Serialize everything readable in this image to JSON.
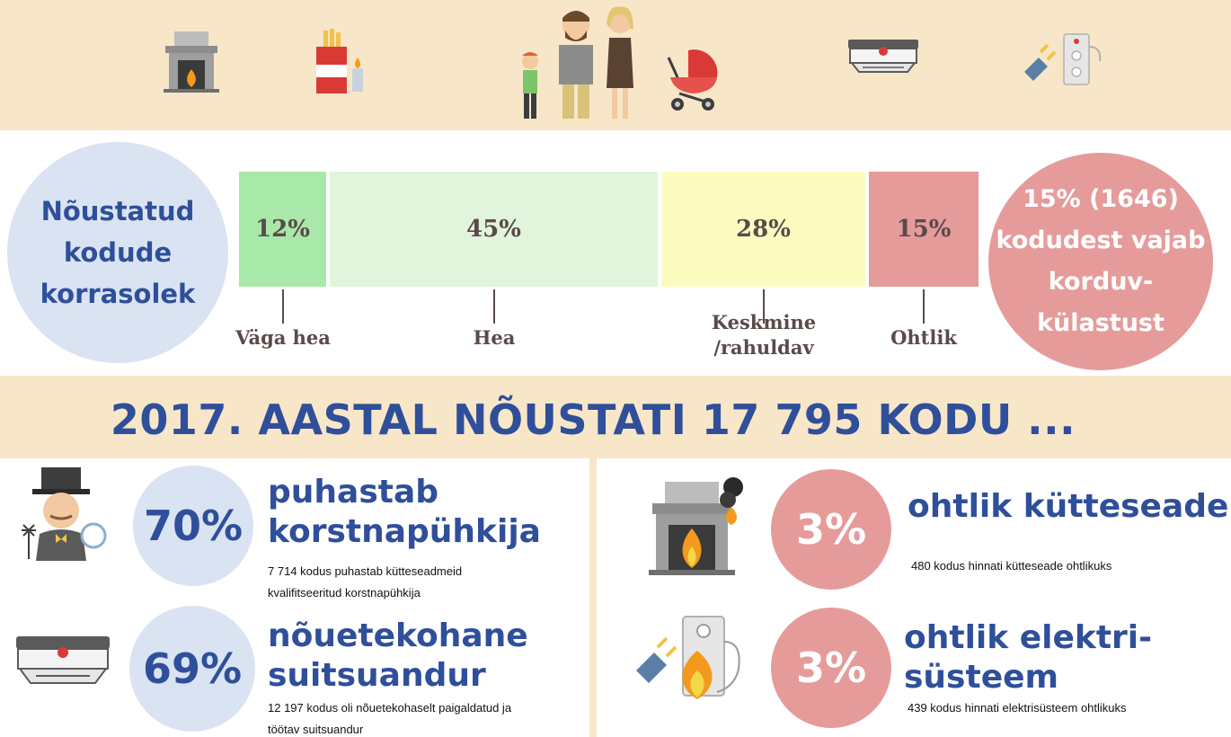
{
  "icons": [
    "fireplace-icon",
    "cigarettes-lighter-icon",
    "family-icon",
    "stroller-icon",
    "smoke-detector-icon",
    "plug-socket-icon"
  ],
  "left_circle": {
    "lines": [
      "Nõustatud",
      "kodude",
      "korrasolek"
    ]
  },
  "right_circle": {
    "lines": [
      "15% (1646)",
      "kodudest vajab",
      "korduv-",
      "külastust"
    ]
  },
  "chart_data": {
    "type": "bar",
    "orientation": "stacked-horizontal",
    "categories": [
      "Väga hea",
      "Hea",
      "Keskmine /rahuldav",
      "Ohtlik"
    ],
    "values": [
      12,
      45,
      28,
      15
    ],
    "value_labels": [
      "12%",
      "45%",
      "28%",
      "15%"
    ],
    "label_lines": [
      [
        "Väga hea"
      ],
      [
        "Hea"
      ],
      [
        "Keskmine",
        "/rahuldav"
      ],
      [
        "Ohtlik"
      ]
    ],
    "colors": [
      "#a8e8a8",
      "#e0f5dc",
      "#fdfcc0",
      "#e69b9b"
    ],
    "title": "",
    "xlabel": "",
    "ylabel": ""
  },
  "headline": "2017. AASTAL NÕUSTATI 17 795 KODU ...",
  "stats": [
    {
      "pct": "70%",
      "title_lines": [
        "puhastab",
        "korstnapühkija"
      ],
      "desc_lines": [
        "7 714 kodus puhastab kütteseadmeid",
        "kvalifitseeritud korstnapühkija"
      ],
      "icon": "chimney-sweep-icon",
      "tone": "blue"
    },
    {
      "pct": "69%",
      "title_lines": [
        "nõuetekohane",
        "suitsuandur"
      ],
      "desc_lines": [
        "12 197 kodus oli nõuetekohaselt paigaldatud ja",
        "töötav suitsuandur"
      ],
      "icon": "smoke-detector-icon",
      "tone": "blue"
    },
    {
      "pct": "3%",
      "title_lines": [
        "ohtlik kütteseade"
      ],
      "desc_lines": [
        "480 kodus hinnati kütteseade ohtlikuks"
      ],
      "icon": "burning-fireplace-icon",
      "tone": "red"
    },
    {
      "pct": "3%",
      "title_lines": [
        "ohtlik elektri-",
        "süsteem"
      ],
      "desc_lines": [
        "439 kodus hinnati elektrisüsteem ohtlikuks"
      ],
      "icon": "burning-socket-icon",
      "tone": "red"
    }
  ]
}
